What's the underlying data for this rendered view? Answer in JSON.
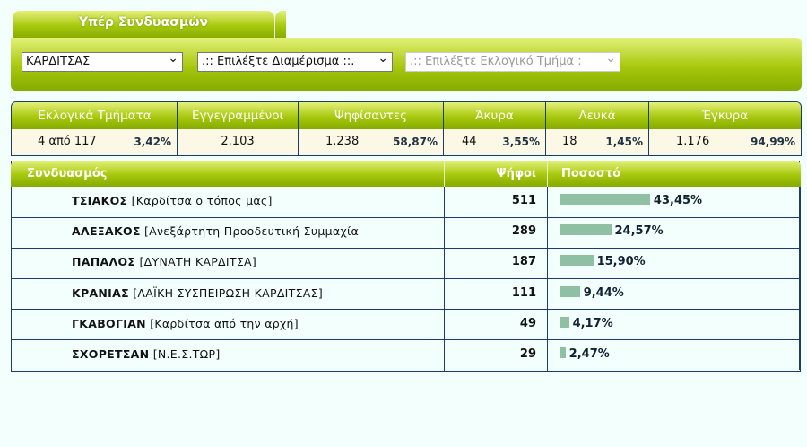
{
  "tabs": [
    "Υπέρ Συνδυασμών"
  ],
  "selects": [
    "ΚΑΡΔΙΤΣΑΣ",
    ".:: Επιλέξτε Διαμέρισμα ::.",
    ".:: Επιλέξτε Εκλογικό Τμήμα :"
  ],
  "stats": {
    "headers": [
      "Εκλογικά Τμήματα",
      "Εγγεγραμμένοι",
      "Ψηφίσαντες",
      "Άκυρα",
      "Λευκά",
      "Έγκυρα"
    ],
    "values": [
      {
        "value": "4 από 117",
        "percent": "3,42%"
      },
      {
        "value": "2.103"
      },
      {
        "value": "1.238",
        "percent": "58,87%"
      },
      {
        "value": "44",
        "percent": "3,55%"
      },
      {
        "value": "18",
        "percent": "1,45%"
      },
      {
        "value": "1.176",
        "percent": "94,99%"
      }
    ]
  },
  "results": {
    "headers": [
      "Συνδυασμός",
      "Ψήφοι",
      "Ποσοστό"
    ],
    "rows": [
      {
        "name": "ΤΣΙΑΚΟΣ",
        "party": "[Καρδίτσα ο τόπος μας]",
        "votes": 511,
        "percent": 43.45,
        "percent_label": "43,45%"
      },
      {
        "name": "ΑΛΕΞΑΚΟΣ",
        "party": "[Ανεξάρτητη Προοδευτική Συμμαχία",
        "votes": 289,
        "percent": 24.57,
        "percent_label": "24,57%"
      },
      {
        "name": "ΠΑΠΑΛΟΣ",
        "party": "[ΔΥΝΑΤΗ ΚΑΡΔΙΤΣΑ]",
        "votes": 187,
        "percent": 15.9,
        "percent_label": "15,90%"
      },
      {
        "name": "ΚΡΑΝΙΑΣ",
        "party": "[ΛΑΪΚΗ ΣΥΣΠΕΙΡΩΣΗ ΚΑΡΔΙΤΣΑΣ]",
        "votes": 111,
        "percent": 9.44,
        "percent_label": "9,44%"
      },
      {
        "name": "ΓΚΑΒΟΓΙΑΝ",
        "party": "[Καρδίτσα από την αρχή]",
        "votes": 49,
        "percent": 4.17,
        "percent_label": "4,17%"
      },
      {
        "name": "ΣΧΟΡΕΤΣΑΝ",
        "party": "[Ν.Ε.Σ.ΤΩΡ]",
        "votes": 29,
        "percent": 2.47,
        "percent_label": "2,47%"
      }
    ]
  }
}
